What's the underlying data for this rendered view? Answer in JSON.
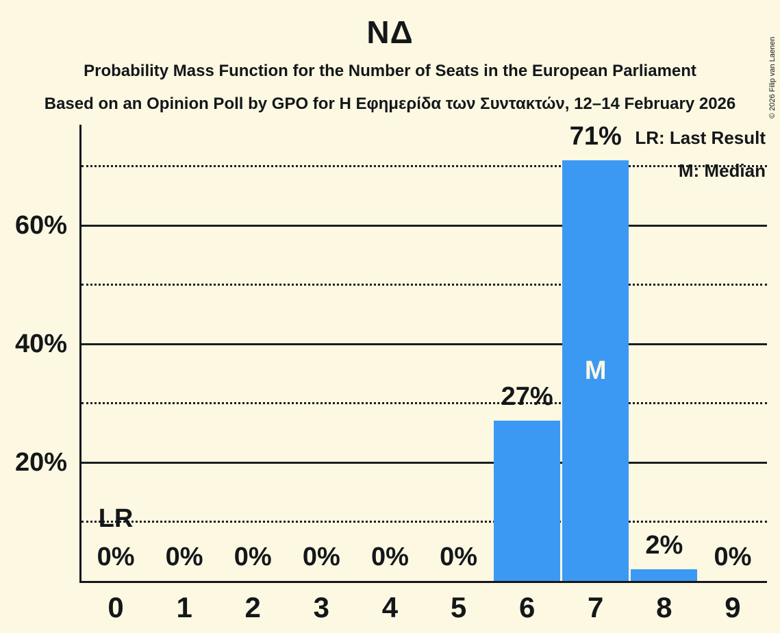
{
  "title": "ΝΔ",
  "subtitle": "Probability Mass Function for the Number of Seats in the European Parliament",
  "poll_line": "Based on an Opinion Poll by GPO for Η Εφημερίδα των Συντακτών, 12–14 February 2026",
  "copyright": "© 2026 Filip van Laenen",
  "legend": {
    "last_result": "LR: Last Result",
    "median": "M: Median"
  },
  "chart_data": {
    "type": "bar",
    "categories": [
      "0",
      "1",
      "2",
      "3",
      "4",
      "5",
      "6",
      "7",
      "8",
      "9"
    ],
    "values": [
      0,
      0,
      0,
      0,
      0,
      0,
      27,
      71,
      2,
      0
    ],
    "bar_labels": [
      "0%",
      "0%",
      "0%",
      "0%",
      "0%",
      "0%",
      "27%",
      "71%",
      "2%",
      "0%"
    ],
    "yticks": [
      {
        "value": 20,
        "label": "20%"
      },
      {
        "value": 40,
        "label": "40%"
      },
      {
        "value": 60,
        "label": "60%"
      }
    ],
    "solid_gridlines": [
      20,
      40,
      60
    ],
    "dotted_gridlines": [
      10,
      30,
      50,
      70
    ],
    "ylim": [
      0,
      77
    ],
    "grid": true,
    "legend_position": "top-right",
    "markers": {
      "last_result": {
        "category": "0",
        "category_index": 0,
        "label": "LR"
      },
      "median": {
        "category": "7",
        "category_index": 7,
        "label": "M"
      }
    },
    "bar_color": "#3B99F4",
    "background_color": "#FCF8E1",
    "text_color": "#14171A"
  }
}
